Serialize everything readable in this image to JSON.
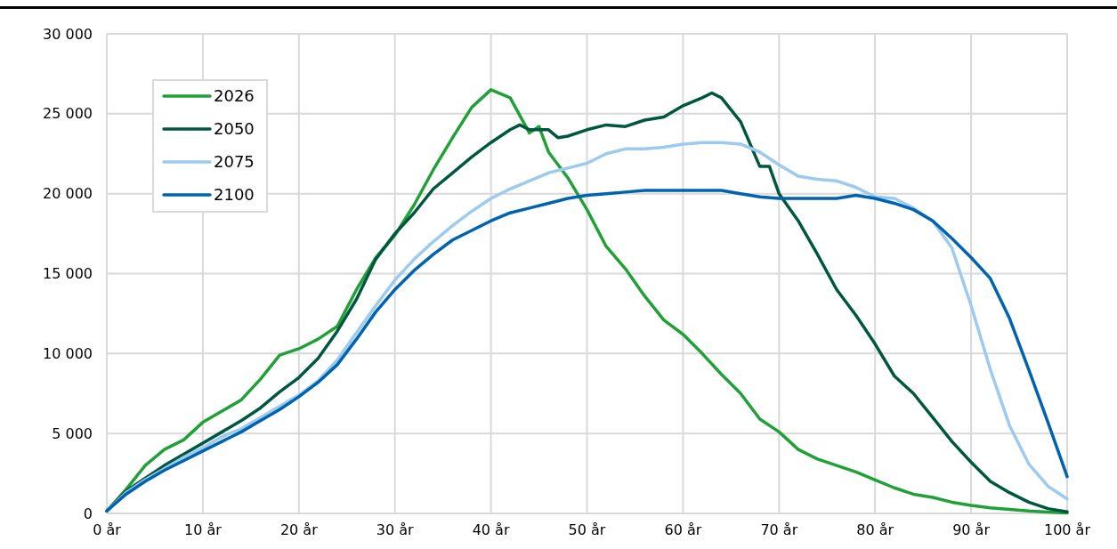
{
  "chart_data": {
    "type": "line",
    "xlim": [
      0,
      100
    ],
    "xticks": [
      {
        "value": 0,
        "label": "0 år"
      },
      {
        "value": 10,
        "label": "10 år"
      },
      {
        "value": 20,
        "label": "20 år"
      },
      {
        "value": 30,
        "label": "30 år"
      },
      {
        "value": 40,
        "label": "40 år"
      },
      {
        "value": 50,
        "label": "50 år"
      },
      {
        "value": 60,
        "label": "60 år"
      },
      {
        "value": 70,
        "label": "70 år"
      },
      {
        "value": 80,
        "label": "80 år"
      },
      {
        "value": 90,
        "label": "90 år"
      },
      {
        "value": 100,
        "label": "100 år"
      }
    ],
    "ylim": [
      0,
      30000
    ],
    "yticks": [
      {
        "value": 0,
        "label": "0"
      },
      {
        "value": 5000,
        "label": "5 000"
      },
      {
        "value": 10000,
        "label": "10 000"
      },
      {
        "value": 15000,
        "label": "15 000"
      },
      {
        "value": 20000,
        "label": "20 000"
      },
      {
        "value": 25000,
        "label": "25 000"
      },
      {
        "value": 30000,
        "label": "30 000"
      }
    ],
    "grid": true,
    "legend": "top left",
    "marker": "none",
    "line_style": "solid",
    "series": [
      {
        "name": "2026",
        "color": "#21a038",
        "x": [
          0,
          2,
          4,
          6,
          8,
          10,
          12,
          14,
          16,
          18,
          20,
          22,
          24,
          26,
          28,
          30,
          32,
          34,
          36,
          38,
          40,
          42,
          44,
          45,
          46,
          48,
          50,
          52,
          54,
          56,
          58,
          60,
          62,
          64,
          66,
          68,
          70,
          72,
          74,
          76,
          78,
          80,
          82,
          84,
          86,
          88,
          90,
          92,
          94,
          96,
          98,
          100
        ],
        "values": [
          150,
          1500,
          3000,
          4000,
          4600,
          5700,
          6400,
          7100,
          8400,
          9900,
          10300,
          10900,
          11700,
          14000,
          16000,
          17400,
          19300,
          21500,
          23500,
          25400,
          26500,
          26000,
          23800,
          24200,
          22600,
          21000,
          19000,
          16700,
          15300,
          13600,
          12100,
          11200,
          10000,
          8700,
          7500,
          5900,
          5100,
          4000,
          3400,
          3000,
          2600,
          2100,
          1600,
          1200,
          1000,
          700,
          500,
          350,
          250,
          150,
          80,
          30
        ]
      },
      {
        "name": "2050",
        "color": "#00573f",
        "x": [
          0,
          2,
          4,
          6,
          8,
          10,
          12,
          14,
          16,
          18,
          20,
          22,
          24,
          26,
          28,
          30,
          32,
          34,
          36,
          38,
          40,
          42,
          43,
          44,
          46,
          47,
          48,
          50,
          52,
          54,
          56,
          58,
          60,
          62,
          63,
          64,
          66,
          68,
          69,
          70,
          72,
          74,
          76,
          78,
          80,
          82,
          84,
          86,
          88,
          90,
          92,
          94,
          96,
          98,
          100
        ],
        "values": [
          150,
          1400,
          2200,
          3000,
          3700,
          4400,
          5100,
          5800,
          6600,
          7600,
          8500,
          9700,
          11400,
          13400,
          15900,
          17500,
          18800,
          20300,
          21300,
          22300,
          23200,
          24000,
          24300,
          24000,
          24000,
          23500,
          23600,
          24000,
          24300,
          24200,
          24600,
          24800,
          25500,
          26000,
          26300,
          26000,
          24500,
          21700,
          21700,
          20000,
          18300,
          16200,
          14000,
          12400,
          10600,
          8600,
          7500,
          6000,
          4500,
          3200,
          2000,
          1300,
          700,
          300,
          100
        ]
      },
      {
        "name": "2075",
        "color": "#9ccbef",
        "x": [
          0,
          2,
          4,
          6,
          8,
          10,
          12,
          14,
          16,
          18,
          20,
          22,
          24,
          26,
          28,
          30,
          32,
          34,
          36,
          38,
          40,
          42,
          44,
          46,
          48,
          50,
          52,
          54,
          56,
          58,
          60,
          62,
          64,
          66,
          68,
          70,
          72,
          74,
          76,
          78,
          80,
          82,
          84,
          86,
          88,
          90,
          92,
          94,
          96,
          98,
          100
        ],
        "values": [
          150,
          1300,
          2100,
          2800,
          3500,
          4100,
          4800,
          5300,
          6000,
          6700,
          7400,
          8300,
          9600,
          11300,
          13000,
          14600,
          15900,
          17000,
          18000,
          18900,
          19700,
          20300,
          20800,
          21300,
          21600,
          21900,
          22500,
          22800,
          22800,
          22900,
          23100,
          23200,
          23200,
          23100,
          22600,
          21800,
          21100,
          20900,
          20800,
          20400,
          19800,
          19700,
          19100,
          18300,
          16600,
          13000,
          9000,
          5500,
          3100,
          1700,
          900
        ]
      },
      {
        "name": "2100",
        "color": "#0063b0",
        "x": [
          0,
          2,
          4,
          6,
          8,
          10,
          12,
          14,
          16,
          18,
          20,
          22,
          24,
          26,
          28,
          30,
          32,
          34,
          36,
          38,
          40,
          42,
          44,
          46,
          48,
          50,
          52,
          54,
          56,
          58,
          60,
          62,
          64,
          66,
          68,
          70,
          72,
          74,
          76,
          78,
          80,
          82,
          84,
          86,
          88,
          90,
          92,
          94,
          96,
          98,
          100
        ],
        "values": [
          150,
          1200,
          2000,
          2700,
          3300,
          3900,
          4500,
          5100,
          5800,
          6500,
          7300,
          8200,
          9300,
          10900,
          12600,
          14000,
          15200,
          16200,
          17100,
          17700,
          18300,
          18800,
          19100,
          19400,
          19700,
          19900,
          20000,
          20100,
          20200,
          20200,
          20200,
          20200,
          20200,
          20000,
          19800,
          19700,
          19700,
          19700,
          19700,
          19900,
          19700,
          19400,
          19000,
          18300,
          17200,
          16000,
          14700,
          12200,
          9000,
          5700,
          2300
        ]
      }
    ]
  }
}
